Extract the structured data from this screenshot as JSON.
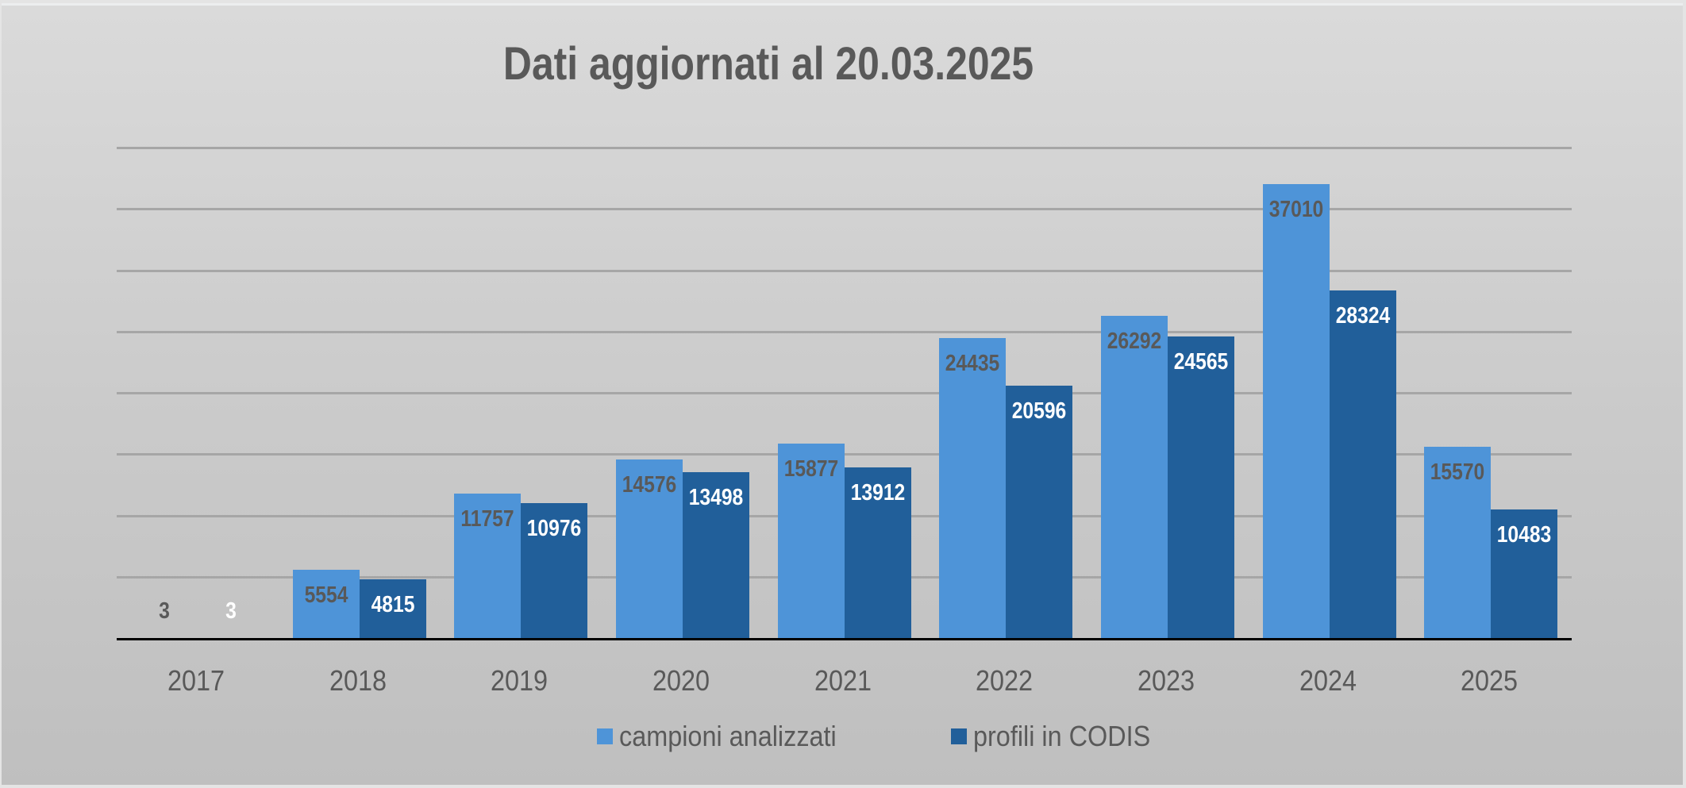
{
  "chart_data": {
    "type": "bar",
    "title": "Dati aggiornati al 20.03.2025",
    "xlabel": "",
    "ylabel": "",
    "ylim": [
      0,
      40000
    ],
    "grid": true,
    "gridline_step": 5000,
    "legend_position": "bottom",
    "categories": [
      "2017",
      "2018",
      "2019",
      "2020",
      "2021",
      "2022",
      "2023",
      "2024",
      "2025"
    ],
    "series": [
      {
        "name": "campioni analizzati",
        "color": "#4e94d8",
        "label_color": "#595959",
        "values": [
          3,
          5554,
          11757,
          14576,
          15877,
          24435,
          26292,
          37010,
          15570
        ]
      },
      {
        "name": "profili in CODIS",
        "color": "#215f9a",
        "label_color": "#ffffff",
        "values": [
          3,
          4815,
          10976,
          13498,
          13912,
          20596,
          24565,
          28324,
          10483
        ]
      }
    ]
  },
  "title": "Dati aggiornati al 20.03.2025",
  "legend": [
    {
      "label": "campioni analizzati",
      "color": "#4e94d8"
    },
    {
      "label": "profili in CODIS",
      "color": "#215f9a"
    }
  ]
}
